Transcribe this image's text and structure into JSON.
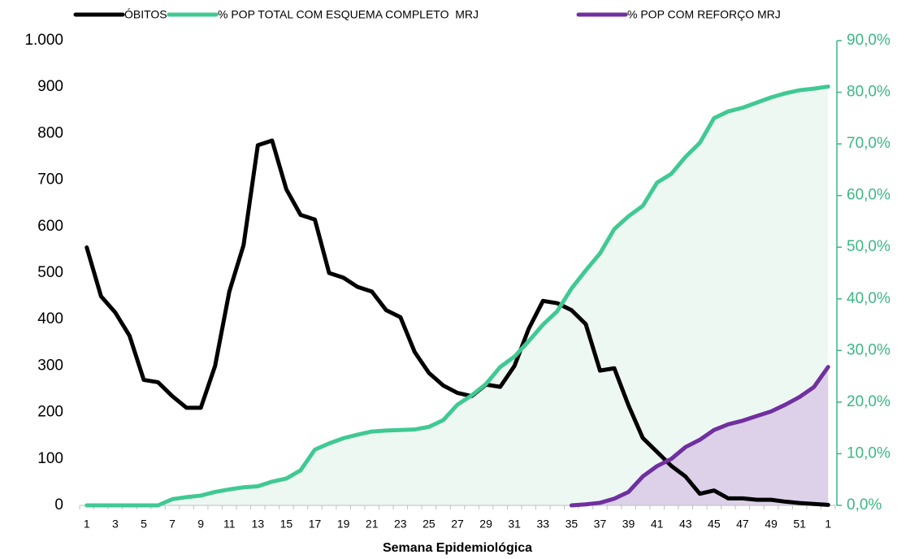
{
  "chart_data": {
    "type": "line",
    "x_label": "Semana Epidemiológica",
    "categories": [
      "1",
      null,
      "3",
      null,
      "5",
      null,
      "7",
      null,
      "9",
      null,
      "11",
      null,
      "13",
      null,
      "15",
      null,
      "17",
      null,
      "19",
      null,
      "21",
      null,
      "23",
      null,
      "25",
      null,
      "27",
      null,
      "29",
      null,
      "31",
      null,
      "33",
      null,
      "35",
      null,
      "37",
      null,
      "39",
      null,
      "41",
      null,
      "43",
      null,
      "45",
      null,
      "47",
      null,
      "49",
      null,
      "51",
      null,
      "1"
    ],
    "series": [
      {
        "name": "ÓBITOS",
        "color": "#000000",
        "values": [
          555,
          450,
          415,
          365,
          270,
          265,
          235,
          210,
          210,
          300,
          460,
          560,
          775,
          785,
          680,
          625,
          615,
          500,
          490,
          470,
          460,
          420,
          405,
          330,
          285,
          258,
          242,
          235,
          260,
          255,
          300,
          380,
          440,
          435,
          420,
          390,
          290,
          295,
          215,
          145,
          115,
          85,
          62,
          25,
          32,
          15,
          15,
          12,
          12,
          8,
          5,
          3,
          1
        ]
      },
      {
        "name": "% POP TOTAL COM ESQUEMA COMPLETO  MRJ",
        "color": "#40c993",
        "fill": "#eef8f3",
        "axis": "y2",
        "values": [
          0,
          0,
          0,
          0,
          0,
          0,
          1.2,
          1.6,
          1.9,
          2.6,
          3.1,
          3.5,
          3.7,
          4.6,
          5.2,
          6.8,
          10.8,
          12.0,
          13.0,
          13.7,
          14.3,
          14.5,
          14.6,
          14.7,
          15.2,
          16.5,
          19.5,
          21.3,
          23.5,
          26.8,
          28.8,
          31.8,
          35.0,
          37.6,
          42.0,
          45.5,
          48.8,
          53.5,
          56.0,
          58.0,
          62.5,
          64.2,
          67.5,
          70.2,
          75.0,
          76.3,
          77.0,
          78.0,
          79.0,
          79.8,
          80.4,
          80.7,
          81.1
        ]
      },
      {
        "name": "% POP COM REFORÇO MRJ",
        "color": "#7030a0",
        "fill": "#dcd1e8",
        "axis": "y2",
        "values": [
          null,
          null,
          null,
          null,
          null,
          null,
          null,
          null,
          null,
          null,
          null,
          null,
          null,
          null,
          null,
          null,
          null,
          null,
          null,
          null,
          null,
          null,
          null,
          null,
          null,
          null,
          null,
          null,
          null,
          null,
          null,
          null,
          null,
          null,
          0.0,
          0.2,
          0.5,
          1.3,
          2.6,
          5.6,
          7.6,
          9.0,
          11.3,
          12.7,
          14.6,
          15.7,
          16.4,
          17.3,
          18.2,
          19.5,
          21.0,
          22.9,
          26.8
        ]
      }
    ],
    "ylim": [
      0,
      1000
    ],
    "yticks": [
      0,
      100,
      200,
      300,
      400,
      500,
      600,
      700,
      800,
      900,
      {
        "value": 1000,
        "label": "1.000"
      }
    ],
    "y2lim": [
      0,
      90
    ],
    "y2ticks": [
      {
        "value": 0,
        "label": "0,0%"
      },
      {
        "value": 10,
        "label": "10,0%"
      },
      {
        "value": 20,
        "label": "20,0%"
      },
      {
        "value": 30,
        "label": "30,0%"
      },
      {
        "value": 40,
        "label": "40,0%"
      },
      {
        "value": 50,
        "label": "50,0%"
      },
      {
        "value": 60,
        "label": "60,0%"
      },
      {
        "value": 70,
        "label": "70,0%"
      },
      {
        "value": 80,
        "label": "80,0%"
      },
      {
        "value": 90,
        "label": "90,0%"
      }
    ],
    "y2_color": "#3bb784",
    "grid": false,
    "legend": "top"
  }
}
